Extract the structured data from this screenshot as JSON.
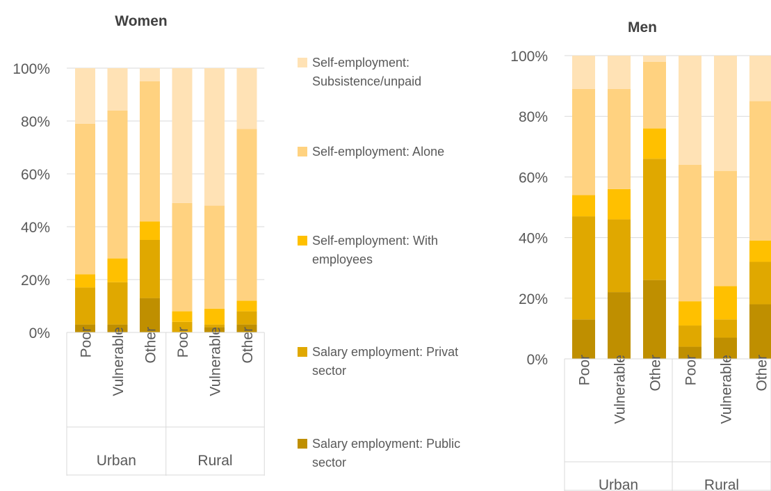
{
  "colors": {
    "Salary employment: Public sector": "#bf8f00",
    "Salary employment: Private sector": "#e0a800",
    "Self-employment: With employees": "#ffc000",
    "Self-employment: Alone": "#ffd280",
    "Self-employment: Subsistence/unpaid": "#ffe2b5"
  },
  "legend": {
    "items": [
      {
        "series": "Self-employment: Subsistence/unpaid",
        "lines": [
          "Self-employment:",
          "Subsistence/unpaid"
        ]
      },
      {
        "series": "Self-employment: Alone",
        "lines": [
          "Self-employment: Alone"
        ]
      },
      {
        "series": "Self-employment: With employees",
        "lines": [
          "Self-employment: With",
          "employees"
        ]
      },
      {
        "series": "Salary employment: Private sector",
        "lines": [
          "Salary employment: Privat",
          "sector"
        ]
      },
      {
        "series": "Salary employment: Public sector",
        "lines": [
          "Salary employment: Public",
          "sector"
        ]
      }
    ]
  },
  "chart_data": [
    {
      "type": "bar",
      "stacked": true,
      "title": "Women",
      "yticks": [
        "0%",
        "20%",
        "40%",
        "60%",
        "80%",
        "100%"
      ],
      "ylim": [
        0,
        100
      ],
      "grid": true,
      "groups": [
        {
          "label": "Urban",
          "categories": [
            "Poor",
            "Vulnerable",
            "Other"
          ]
        },
        {
          "label": "Rural",
          "categories": [
            "Poor",
            "Vulnerable",
            "Other"
          ]
        }
      ],
      "series": [
        {
          "name": "Salary employment: Public sector",
          "values": [
            3,
            3,
            13,
            0,
            2,
            3
          ]
        },
        {
          "name": "Salary employment: Private sector",
          "values": [
            14,
            16,
            22,
            4,
            1,
            5
          ]
        },
        {
          "name": "Self-employment: With employees",
          "values": [
            5,
            9,
            7,
            4,
            6,
            4
          ]
        },
        {
          "name": "Self-employment: Alone",
          "values": [
            57,
            56,
            53,
            41,
            39,
            65
          ]
        },
        {
          "name": "Self-employment: Subsistence/unpaid",
          "values": [
            21,
            16,
            5,
            51,
            52,
            23
          ]
        }
      ]
    },
    {
      "type": "bar",
      "stacked": true,
      "title": "Men",
      "yticks": [
        "0%",
        "20%",
        "40%",
        "60%",
        "80%",
        "100%"
      ],
      "ylim": [
        0,
        100
      ],
      "grid": true,
      "groups": [
        {
          "label": "Urban",
          "categories": [
            "Poor",
            "Vulnerable",
            "Other"
          ]
        },
        {
          "label": "Rural",
          "categories": [
            "Poor",
            "Vulnerable",
            "Other"
          ]
        }
      ],
      "series": [
        {
          "name": "Salary employment: Public sector",
          "values": [
            13,
            22,
            26,
            4,
            7,
            18
          ]
        },
        {
          "name": "Salary employment: Private sector",
          "values": [
            34,
            24,
            40,
            7,
            6,
            14
          ]
        },
        {
          "name": "Self-employment: With employees",
          "values": [
            7,
            10,
            10,
            8,
            11,
            7
          ]
        },
        {
          "name": "Self-employment: Alone",
          "values": [
            35,
            33,
            22,
            45,
            38,
            46
          ]
        },
        {
          "name": "Self-employment: Subsistence/unpaid",
          "values": [
            11,
            11,
            2,
            36,
            38,
            15
          ]
        }
      ]
    }
  ]
}
